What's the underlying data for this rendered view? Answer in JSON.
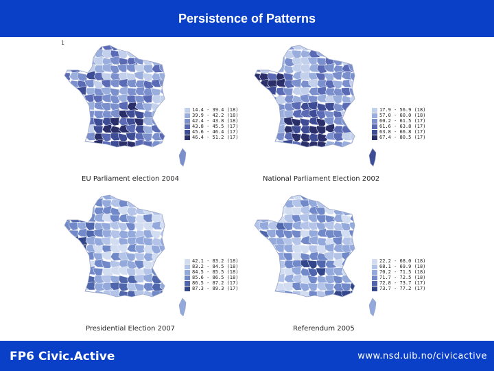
{
  "title": "Persistence of Patterns",
  "stray_mark": "1",
  "footer": {
    "left": "FP6 Civic.Active",
    "right": "www.nsd.uib.no/civicactive"
  },
  "panels": [
    {
      "caption": "EU Parliament election 2004",
      "palette": [
        "#c3d0ec",
        "#99aedc",
        "#7a8fcc",
        "#5b6ab5",
        "#3e4b95",
        "#2a2f6a"
      ],
      "legend": [
        "14.4 - 39.4 (18)",
        "39.9 - 42.2 (18)",
        "42.4 - 43.8 (18)",
        "43.8 - 45.5 (17)",
        "45.6 - 46.4 (17)",
        "46.4 - 51.2 (17)"
      ]
    },
    {
      "caption": "National Parliament Election 2002",
      "palette": [
        "#c3d0ec",
        "#99aedc",
        "#7a8fcc",
        "#5b6ab5",
        "#3e4b95",
        "#2a2f6a"
      ],
      "legend": [
        "17.9 - 56.9 (18)",
        "57.0 - 60.0 (18)",
        "60.2 - 61.5 (17)",
        "61.6 - 63.8 (17)",
        "63.8 - 66.8 (17)",
        "67.4 - 80.5 (17)"
      ]
    },
    {
      "caption": "Presidential Election 2007",
      "palette": [
        "#d3ddf2",
        "#b4c4e8",
        "#94a9db",
        "#7189c8",
        "#4f66ad",
        "#33468a"
      ],
      "legend": [
        "42.1 - 83.2 (18)",
        "83.2 - 84.5 (18)",
        "84.5 - 85.5 (18)",
        "85.6 - 86.5 (18)",
        "86.5 - 87.2 (17)",
        "87.3 - 89.3 (17)"
      ]
    },
    {
      "caption": "Referendum 2005",
      "palette": [
        "#d3ddf2",
        "#b4c4e8",
        "#94a9db",
        "#7189c8",
        "#4f66ad",
        "#33468a"
      ],
      "legend": [
        "22.2 - 68.0 (18)",
        "68.1 - 69.9 (18)",
        "70.2 - 71.5 (18)",
        "71.7 - 72.5 (18)",
        "72.8 - 73.7 (17)",
        "73.7 - 77.2 (17)"
      ]
    }
  ]
}
